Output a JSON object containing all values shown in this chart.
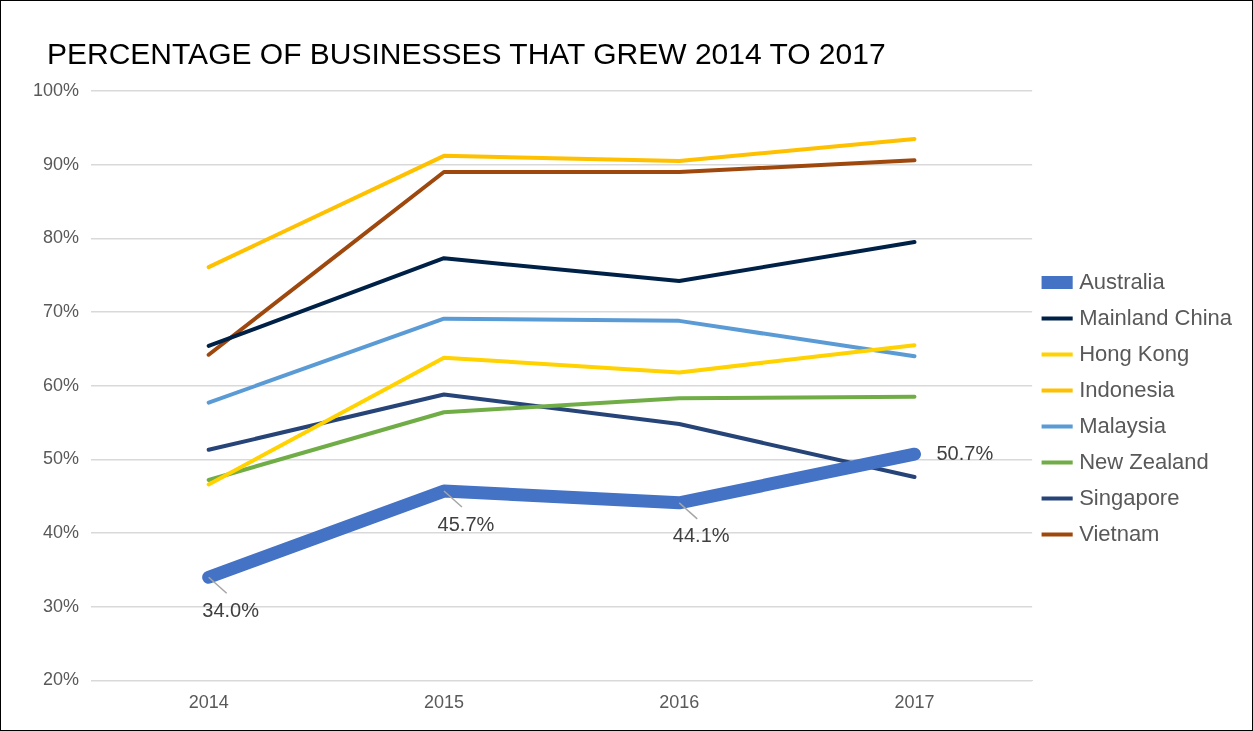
{
  "chart_data": {
    "type": "line",
    "title": "PERCENTAGE OF BUSINESSES THAT GREW 2014 TO 2017",
    "categories": [
      "2014",
      "2015",
      "2016",
      "2017"
    ],
    "series": [
      {
        "name": "Australia",
        "color": "#4472c4",
        "values": [
          34.0,
          45.7,
          44.1,
          50.7
        ],
        "value_labels": [
          "34.0%",
          "45.7%",
          "44.1%",
          "50.7%"
        ]
      },
      {
        "name": "Mainland China",
        "color": "#002147",
        "values": [
          65.4,
          77.3,
          74.2,
          79.5
        ]
      },
      {
        "name": "Hong Kong",
        "color": "#ffd200",
        "values": [
          46.6,
          63.8,
          61.8,
          65.5
        ]
      },
      {
        "name": "Indonesia",
        "color": "#ffc000",
        "values": [
          76.1,
          91.2,
          90.5,
          93.5
        ]
      },
      {
        "name": "Malaysia",
        "color": "#5b9bd5",
        "values": [
          57.7,
          69.1,
          68.8,
          64.0
        ]
      },
      {
        "name": "New Zealand",
        "color": "#70ad47",
        "values": [
          47.2,
          56.4,
          58.3,
          58.5
        ]
      },
      {
        "name": "Singapore",
        "color": "#264478",
        "values": [
          51.3,
          58.8,
          54.8,
          47.6
        ]
      },
      {
        "name": "Vietnam",
        "color": "#9e480e",
        "values": [
          64.2,
          89.0,
          89.0,
          90.6
        ]
      }
    ],
    "ylim": [
      20,
      100
    ],
    "yticks": [
      {
        "value": 20,
        "label": "20%"
      },
      {
        "value": 30,
        "label": "30%"
      },
      {
        "value": 40,
        "label": "40%"
      },
      {
        "value": 50,
        "label": "50%"
      },
      {
        "value": 60,
        "label": "60%"
      },
      {
        "value": 70,
        "label": "70%"
      },
      {
        "value": 80,
        "label": "80%"
      },
      {
        "value": 90,
        "label": "90%"
      },
      {
        "value": 100,
        "label": "100%"
      }
    ],
    "grid": "y",
    "legend": "right",
    "marker": "none",
    "line_style": "solid"
  }
}
